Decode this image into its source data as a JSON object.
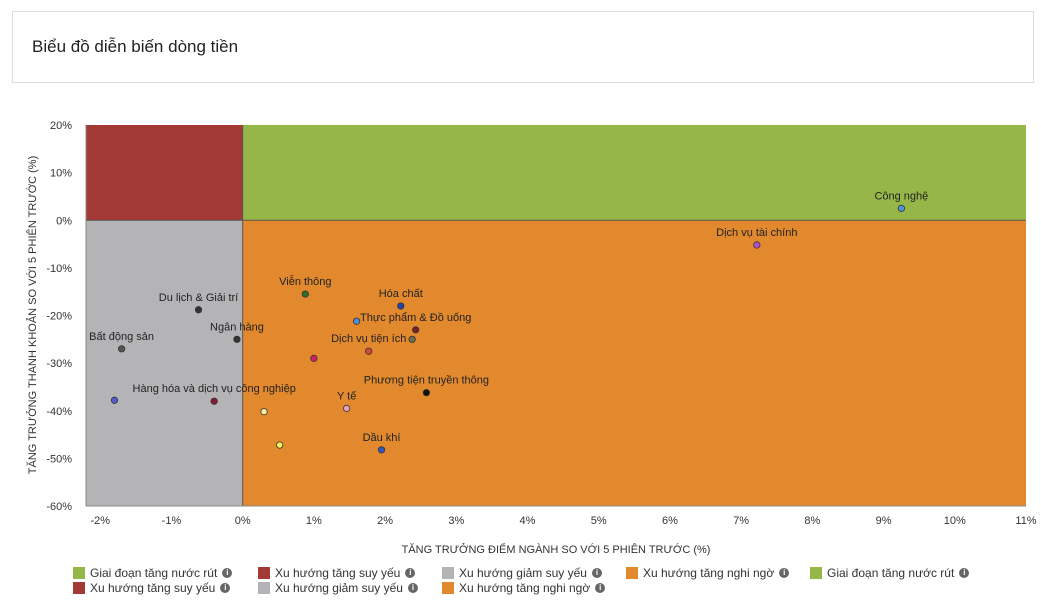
{
  "header": {
    "title": "Biểu đồ diễn biến dòng tiền"
  },
  "chart_data": {
    "type": "scatter",
    "xlabel": "TĂNG TRƯỞNG ĐIỂM NGÀNH SO VỚI 5 PHIÊN TRƯỚC (%)",
    "ylabel": "TĂNG TRƯỞNG THANH KHOẢN SO VỚI 5 PHIÊN TRƯỚC (%)",
    "xlim": [
      -2.2,
      11
    ],
    "ylim": [
      -60,
      20
    ],
    "xticks": [
      -2,
      -1,
      0,
      1,
      2,
      3,
      4,
      5,
      6,
      7,
      8,
      9,
      10,
      11
    ],
    "yticks": [
      20,
      10,
      0,
      -10,
      -20,
      -30,
      -40,
      -50,
      -60
    ],
    "xtick_labels": [
      "-2%",
      "-1%",
      "0%",
      "1%",
      "2%",
      "3%",
      "4%",
      "5%",
      "6%",
      "7%",
      "8%",
      "9%",
      "10%",
      "11%"
    ],
    "ytick_labels": [
      "20%",
      "10%",
      "0%",
      "-10%",
      "-20%",
      "-30%",
      "-40%",
      "-50%",
      "-60%"
    ],
    "quadrants": [
      {
        "name": "top-left",
        "color": "#a33a36"
      },
      {
        "name": "top-right",
        "color": "#96b748"
      },
      {
        "name": "bottom-left",
        "color": "#b4b4b7"
      },
      {
        "name": "bottom-right",
        "color": "#e2892d"
      }
    ],
    "points": [
      {
        "label": "Công nghệ",
        "x": 9.25,
        "y": 2.5,
        "color": "#4f94d4"
      },
      {
        "label": "Dịch vụ tài chính",
        "x": 7.22,
        "y": -5.2,
        "color": "#b24fd2"
      },
      {
        "label": "Viễn thông",
        "x": 0.88,
        "y": -15.5,
        "color": "#2d6e2d"
      },
      {
        "label": "Hóa chất",
        "x": 2.22,
        "y": -18.0,
        "color": "#2244aa"
      },
      {
        "label": "Du lịch & Giải trí",
        "x": -0.62,
        "y": -18.8,
        "color": "#333333"
      },
      {
        "label": "Thực phẩm & Đồ uống",
        "x": 2.43,
        "y": -23.0,
        "color": "#7a1f2a"
      },
      {
        "label": "",
        "x": 1.6,
        "y": -21.2,
        "color": "#4f8fd0"
      },
      {
        "label": "",
        "x": 2.38,
        "y": -25.0,
        "color": "#6e6e4a"
      },
      {
        "label": "Ngân hàng",
        "x": -0.08,
        "y": -25.0,
        "color": "#333333"
      },
      {
        "label": "Dịch vụ tiện ích",
        "x": 1.77,
        "y": -27.5,
        "color": "#d04a3a"
      },
      {
        "label": "Bất động sản",
        "x": -1.7,
        "y": -27.0,
        "color": "#555555"
      },
      {
        "label": "",
        "x": 1.0,
        "y": -29.0,
        "color": "#cc2266"
      },
      {
        "label": "Phương tiện truyền thông",
        "x": 2.58,
        "y": -36.2,
        "color": "#111111"
      },
      {
        "label": "Hàng hóa và dịch vụ công nghiệp",
        "x": -0.4,
        "y": -38.0,
        "color": "#8a1a33"
      },
      {
        "label": "",
        "x": -1.8,
        "y": -37.8,
        "color": "#5a5ad0"
      },
      {
        "label": "Y tế",
        "x": 1.46,
        "y": -39.5,
        "color": "#e8a0c0"
      },
      {
        "label": "",
        "x": 0.3,
        "y": -40.2,
        "color": "#fff0a0"
      },
      {
        "label": "Dầu khí",
        "x": 1.95,
        "y": -48.2,
        "color": "#3355bb"
      },
      {
        "label": "",
        "x": 0.52,
        "y": -47.2,
        "color": "#f0f060"
      }
    ]
  },
  "legend": {
    "items": [
      {
        "label": "Giai đoạn tăng nước rút",
        "color": "#96b748"
      },
      {
        "label": "Xu hướng tăng suy yếu",
        "color": "#a33a36"
      },
      {
        "label": "Xu hướng giảm suy yếu",
        "color": "#b4b4b7"
      },
      {
        "label": "Xu hướng tăng nghi ngờ",
        "color": "#e2892d"
      },
      {
        "label": "Giai đoạn tăng nước rút",
        "color": "#96b748"
      },
      {
        "label": "Xu hướng tăng suy yếu",
        "color": "#a33a36"
      },
      {
        "label": "Xu hướng giảm suy yếu",
        "color": "#b4b4b7"
      },
      {
        "label": "Xu hướng tăng nghi ngờ",
        "color": "#e2892d"
      }
    ]
  }
}
